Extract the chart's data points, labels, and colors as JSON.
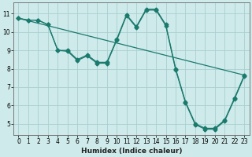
{
  "xlabel": "Humidex (Indice chaleur)",
  "bg_color": "#ceeaea",
  "grid_color": "#aacfcf",
  "line_color": "#1a7a6e",
  "xlim": [
    -0.5,
    23.5
  ],
  "ylim": [
    4.4,
    11.6
  ],
  "yticks": [
    5,
    6,
    7,
    8,
    9,
    10,
    11
  ],
  "xticks": [
    0,
    1,
    2,
    3,
    4,
    5,
    6,
    7,
    8,
    9,
    10,
    11,
    12,
    13,
    14,
    15,
    16,
    17,
    18,
    19,
    20,
    21,
    22,
    23
  ],
  "series1_x": [
    0,
    1,
    2,
    3,
    4,
    5,
    6,
    7,
    8,
    9,
    10,
    11,
    12,
    13,
    14,
    15,
    16,
    17,
    18,
    19,
    20,
    21,
    22,
    23
  ],
  "series1_y": [
    10.75,
    10.65,
    10.65,
    10.4,
    9.0,
    9.0,
    8.5,
    8.75,
    8.35,
    8.35,
    9.6,
    10.95,
    10.3,
    11.25,
    11.25,
    10.4,
    8.0,
    6.2,
    5.0,
    4.75,
    4.75,
    5.2,
    6.4,
    7.65
  ],
  "series2_x": [
    0,
    1,
    2,
    3,
    4,
    5,
    6,
    7,
    8,
    9,
    10,
    11,
    12,
    13,
    14,
    15,
    16,
    17,
    18,
    19,
    20,
    21,
    22,
    23
  ],
  "series2_y": [
    10.75,
    10.65,
    10.65,
    10.4,
    9.0,
    8.95,
    8.45,
    8.7,
    8.3,
    8.3,
    9.55,
    10.9,
    10.25,
    11.2,
    11.2,
    10.35,
    7.95,
    6.15,
    4.95,
    4.7,
    4.7,
    5.15,
    6.35,
    7.6
  ],
  "series3_x": [
    0,
    23
  ],
  "series3_y": [
    10.75,
    7.65
  ]
}
